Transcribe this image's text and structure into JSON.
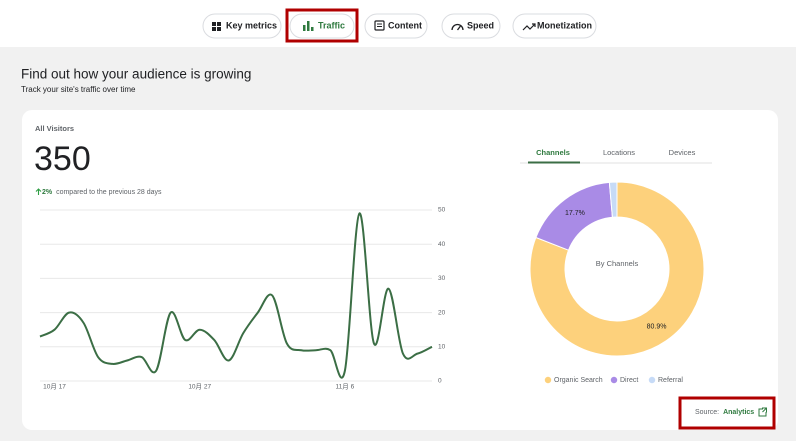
{
  "nav": {
    "tabs": [
      "Key metrics",
      "Traffic",
      "Content",
      "Speed",
      "Monetization"
    ]
  },
  "header": {
    "title": "Find out how your audience is growing",
    "subtitle": "Track your site's traffic over time"
  },
  "summary": {
    "label": "All Visitors",
    "value": 350,
    "change": "2%",
    "change_text": "compared to the previous 28 days"
  },
  "chart_data": [
    {
      "type": "line",
      "categories": [
        null,
        "10月 17",
        null,
        null,
        null,
        null,
        null,
        null,
        null,
        null,
        null,
        "10月 27",
        null,
        null,
        null,
        null,
        null,
        null,
        null,
        null,
        null,
        "11月 6",
        null,
        null,
        null,
        null,
        null,
        null
      ],
      "values": [
        13,
        15,
        20,
        17,
        7,
        5,
        6,
        7,
        3,
        20,
        12,
        15,
        12,
        6,
        14,
        20,
        25,
        11,
        9,
        9,
        9,
        3,
        49,
        11,
        27,
        8,
        8,
        10
      ],
      "color": "#3b6e45",
      "ylim": [
        0,
        50
      ],
      "yticks": [
        0,
        10,
        20,
        30,
        40,
        50
      ],
      "grid": true
    },
    {
      "type": "pie",
      "tabs": [
        "Channels",
        "Locations",
        "Devices"
      ],
      "center_label": "By Channels",
      "categories": [
        "Organic Search",
        "Direct",
        "Referral"
      ],
      "values": [
        80.9,
        17.7,
        1.4
      ],
      "value_labels": [
        "80.9%",
        "17.7%",
        null
      ],
      "colors": [
        "#fdd17c",
        "#a98be6",
        "#c7dbf7"
      ]
    }
  ],
  "source": {
    "label": "Source:",
    "link": "Analytics"
  }
}
